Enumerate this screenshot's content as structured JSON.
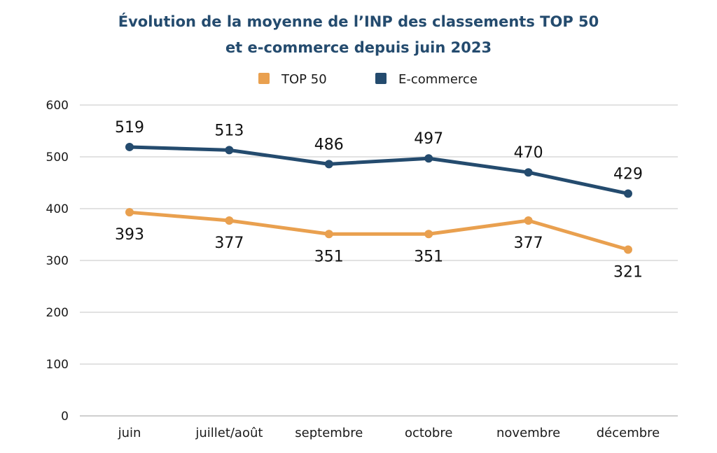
{
  "chart_data": {
    "type": "line",
    "title_lines": [
      "Évolution de la moyenne de l’INP des classements TOP 50",
      "et e-commerce depuis juin 2023"
    ],
    "categories": [
      "juin",
      "juillet/août",
      "septembre",
      "octobre",
      "novembre",
      "décembre"
    ],
    "series": [
      {
        "name": "TOP 50",
        "values": [
          393,
          377,
          351,
          351,
          377,
          321
        ],
        "color": "#e9a04f",
        "label_position": "below"
      },
      {
        "name": "E-commerce",
        "values": [
          519,
          513,
          486,
          497,
          470,
          429
        ],
        "color": "#244b6e",
        "label_position": "above"
      }
    ],
    "ylim": [
      0,
      600
    ],
    "yticks": [
      0,
      100,
      200,
      300,
      400,
      500,
      600
    ],
    "xlabel": "",
    "ylabel": "",
    "grid": true,
    "legend_placement": "top-center"
  }
}
